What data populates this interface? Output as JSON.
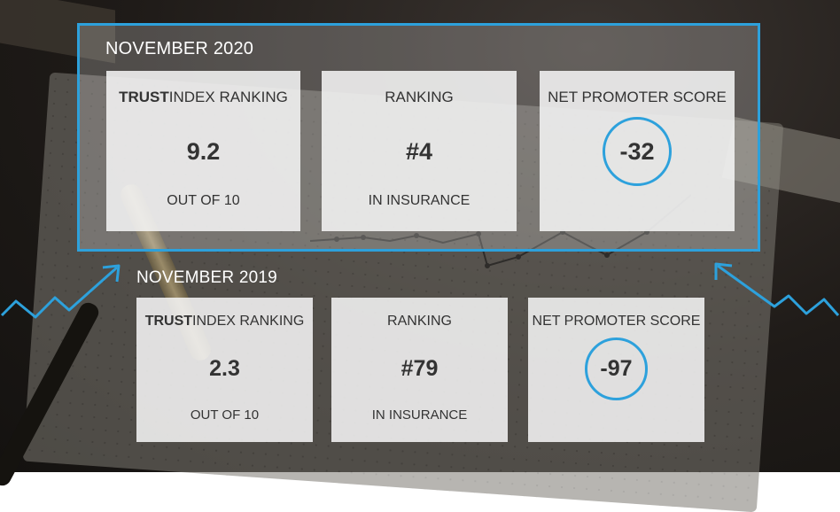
{
  "nov2020": {
    "label": "NOVEMBER 2020",
    "cards": [
      {
        "head_bold": "TRUST",
        "head_rest": "INDEX RANKING",
        "value": "9.2",
        "sub": "OUT OF 10"
      },
      {
        "head": "RANKING",
        "value": "#4",
        "sub": "IN INSURANCE"
      },
      {
        "head": "NET PROMOTER SCORE",
        "value": "-32"
      }
    ]
  },
  "nov2019": {
    "label": "NOVEMBER 2019",
    "cards": [
      {
        "head_bold": "TRUST",
        "head_rest": "INDEX RANKING",
        "value": "2.3",
        "sub": "OUT OF 10"
      },
      {
        "head": "RANKING",
        "value": "#79",
        "sub": "IN INSURANCE"
      },
      {
        "head": "NET PROMOTER SCORE",
        "value": "-97"
      }
    ]
  },
  "colors": {
    "accent": "#2da1dc"
  },
  "icons": [
    "trend-arrow-up-icon",
    "trend-arrow-left-icon"
  ]
}
